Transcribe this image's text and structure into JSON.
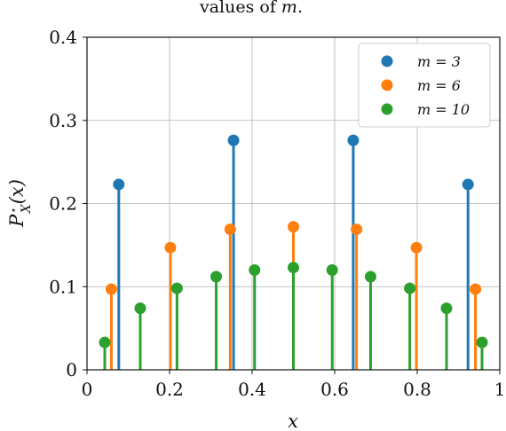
{
  "chart_data": {
    "type": "stem",
    "title_fragment": "values of ",
    "title_var": "m.",
    "xlabel": "x",
    "ylabel": "P⋆X(x)",
    "xlim": [
      0,
      1
    ],
    "ylim": [
      0,
      0.4
    ],
    "xticks": [
      0,
      0.2,
      0.4,
      0.6,
      0.8,
      1
    ],
    "xtick_labels": [
      "0",
      "0.2",
      "0.4",
      "0.6",
      "0.8",
      "1"
    ],
    "yticks": [
      0,
      0.1,
      0.2,
      0.3,
      0.4
    ],
    "ytick_labels": [
      "0",
      "0.1",
      "0.2",
      "0.3",
      "0.4"
    ],
    "grid": true,
    "legend_position": "top-right",
    "series": [
      {
        "name": "m = 3",
        "color": "#1f77b4",
        "points": [
          [
            0.077,
            0.223
          ],
          [
            0.355,
            0.276
          ],
          [
            0.645,
            0.276
          ],
          [
            0.923,
            0.223
          ]
        ]
      },
      {
        "name": "m = 6",
        "color": "#ff7f0e",
        "points": [
          [
            0.059,
            0.097
          ],
          [
            0.202,
            0.147
          ],
          [
            0.347,
            0.169
          ],
          [
            0.5,
            0.172
          ],
          [
            0.653,
            0.169
          ],
          [
            0.798,
            0.147
          ],
          [
            0.941,
            0.097
          ]
        ]
      },
      {
        "name": "m = 10",
        "color": "#2ca02c",
        "points": [
          [
            0.043,
            0.033
          ],
          [
            0.129,
            0.074
          ],
          [
            0.218,
            0.098
          ],
          [
            0.313,
            0.112
          ],
          [
            0.406,
            0.12
          ],
          [
            0.5,
            0.123
          ],
          [
            0.594,
            0.12
          ],
          [
            0.687,
            0.112
          ],
          [
            0.782,
            0.098
          ],
          [
            0.871,
            0.074
          ],
          [
            0.957,
            0.033
          ]
        ]
      }
    ]
  }
}
